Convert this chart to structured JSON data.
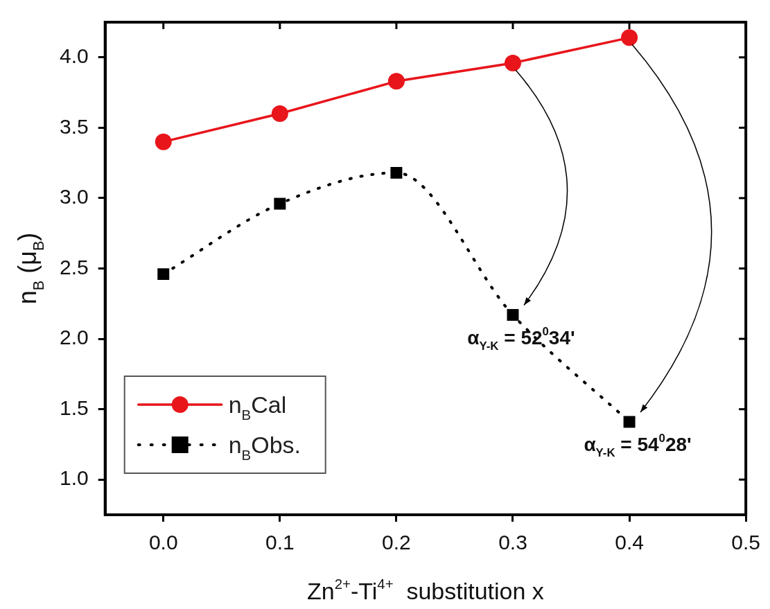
{
  "chart_data": {
    "type": "line",
    "xlabel": "Zn$^{2+}$-Ti$^{4+}$  substitution x",
    "ylabel": "n$_{B}$ (μ$_{B}$)",
    "x": [
      0.0,
      0.1,
      0.2,
      0.3,
      0.4
    ],
    "series": [
      {
        "name": "n$_{B}$Cal",
        "color": "#e8151b",
        "values": [
          3.4,
          3.6,
          3.83,
          3.96,
          4.14
        ],
        "marker": "circle",
        "line_style": "solid"
      },
      {
        "name": "n$_{B}$Obs.",
        "color": "#000000",
        "values": [
          2.46,
          2.96,
          3.18,
          2.17,
          1.41
        ],
        "marker": "square",
        "line_style": "dotted"
      }
    ],
    "xlim": [
      -0.05,
      0.5
    ],
    "xticks": [
      {
        "value": 0.0,
        "label": "0.0"
      },
      0.1,
      0.2,
      0.3,
      0.4,
      0.5
    ],
    "ylim": [
      0.75,
      4.25
    ],
    "yticks": [
      {
        "value": 1.0,
        "label": "1.0"
      },
      1.5,
      {
        "value": 2.0,
        "label": "2.0"
      },
      2.5,
      {
        "value": 3.0,
        "label": "3.0"
      },
      3.5,
      {
        "value": 4.0,
        "label": "4.0"
      }
    ],
    "annotations": [
      {
        "text": "α$_{Y-K}$ = 52$^{0}$34'",
        "x": 0.3,
        "y": 2.17
      },
      {
        "text": "α$_{Y-K}$ = 54$^{0}$28'",
        "x": 0.4,
        "y": 1.41
      }
    ],
    "legend": "bottom left"
  }
}
